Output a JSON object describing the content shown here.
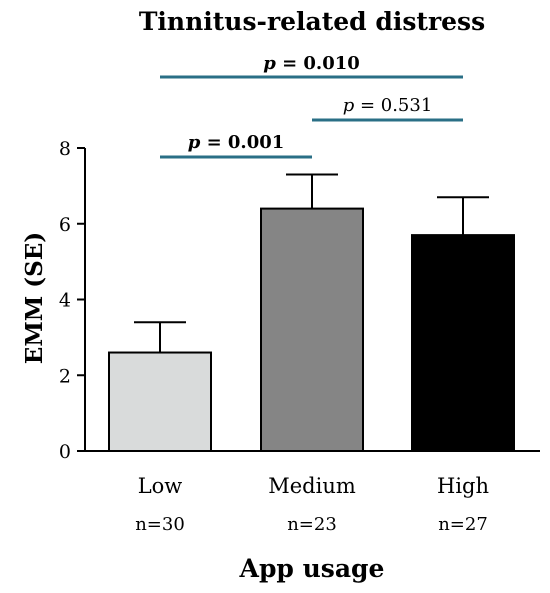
{
  "chart_data": {
    "type": "bar",
    "title": "Tinnitus-related distress",
    "xlabel": "App usage",
    "ylabel": "EMM (SE)",
    "ylim": [
      0,
      8
    ],
    "yticks": [
      "0",
      "2",
      "4",
      "6",
      "8"
    ],
    "categories": [
      "Low",
      "Medium",
      "High"
    ],
    "n_labels": [
      "n=30",
      "n=23",
      "n=27"
    ],
    "values": [
      2.6,
      6.4,
      5.7
    ],
    "errors": [
      0.8,
      0.9,
      1.0
    ],
    "bar_colors": [
      "#d9dbdb",
      "#858585",
      "#000000"
    ],
    "bracket_color": "#2a6f86",
    "comparisons": [
      {
        "from": 0,
        "to": 2,
        "p_symbol": "p",
        "p_rest": " = 0.010",
        "bold": true
      },
      {
        "from": 1,
        "to": 2,
        "p_symbol": "p",
        "p_rest": " = 0.531",
        "bold": false
      },
      {
        "from": 0,
        "to": 1,
        "p_symbol": "p",
        "p_rest": " = 0.001",
        "bold": true
      }
    ]
  }
}
